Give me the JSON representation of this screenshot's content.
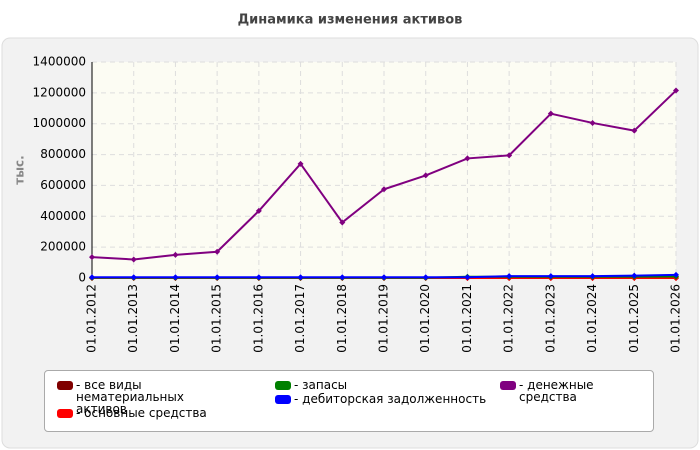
{
  "chart_data": {
    "type": "line",
    "title": "Динамика изменения активов",
    "y_label": "тыс.",
    "categories": [
      "01.01.2012",
      "01.01.2013",
      "01.01.2014",
      "01.01.2015",
      "01.01.2016",
      "01.01.2017",
      "01.01.2018",
      "01.01.2019",
      "01.01.2020",
      "01.01.2021",
      "01.01.2022",
      "01.01.2023",
      "01.01.2024",
      "01.01.2025",
      "01.01.2026"
    ],
    "series": [
      {
        "name": "- все виды нематериальных активов",
        "color": "#800000",
        "values": [
          0,
          0,
          0,
          0,
          0,
          0,
          0,
          0,
          0,
          0,
          0,
          0,
          0,
          0,
          0
        ]
      },
      {
        "name": "- основные средства",
        "color": "#ff0000",
        "values": [
          0,
          0,
          0,
          0,
          0,
          0,
          0,
          0,
          0,
          0,
          0,
          0,
          0,
          0,
          0
        ]
      },
      {
        "name": "- запасы",
        "color": "#008000",
        "values": [
          2000,
          2000,
          2000,
          2000,
          2000,
          2000,
          2000,
          2000,
          2000,
          8000,
          8000,
          8000,
          8000,
          9000,
          10000
        ]
      },
      {
        "name": "- дебиторская задолженность",
        "color": "#0000ff",
        "values": [
          5000,
          5000,
          5000,
          5000,
          5000,
          5000,
          5000,
          5000,
          5000,
          5000,
          12000,
          12000,
          12000,
          15000,
          20000
        ]
      },
      {
        "name": "- денежные средства",
        "color": "#800080",
        "values": [
          135000,
          120000,
          150000,
          170000,
          435000,
          740000,
          360000,
          575000,
          665000,
          775000,
          795000,
          1065000,
          1005000,
          955000,
          1215000
        ]
      }
    ],
    "ylim": [
      0,
      1400000
    ],
    "yticks": [
      0,
      200000,
      400000,
      600000,
      800000,
      1000000,
      1200000,
      1400000
    ],
    "grid": true
  }
}
